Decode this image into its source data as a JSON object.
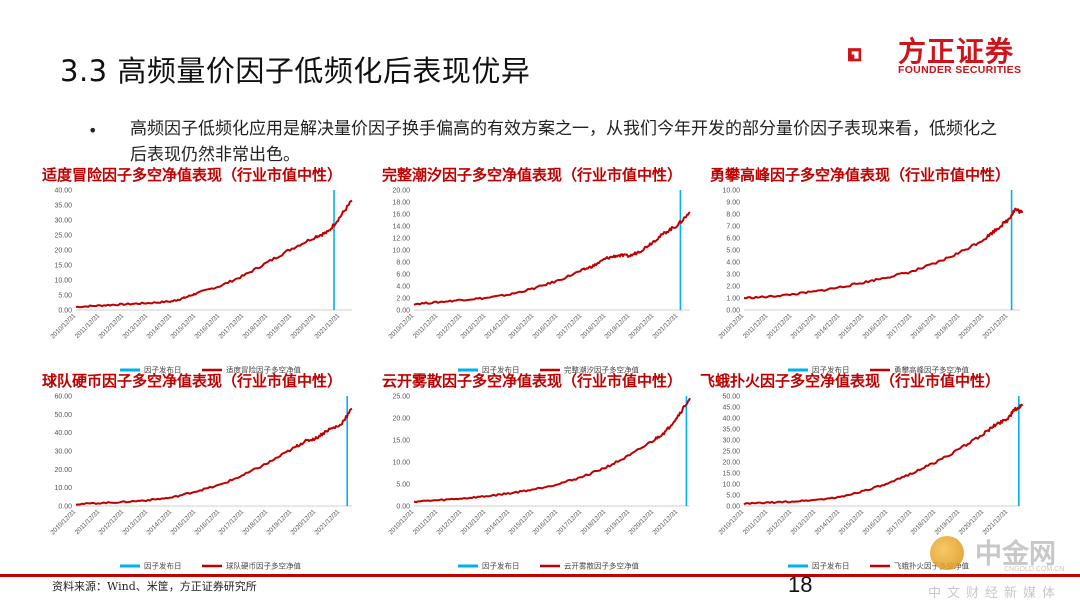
{
  "header": {
    "title": "3.3 高频量价因子低频化后表现优异"
  },
  "logo": {
    "name": "方正证券",
    "sub": "FOUNDER SECURITIES",
    "color": "#d0121b"
  },
  "bullet": {
    "text": "高频因子低频化应用是解决量价因子换手偏高的有效方案之一，从我们今年开发的部分量价因子表现来看，低频化之后表现仍然非常出色。"
  },
  "footer": {
    "source": "资料来源：Wind、米筐，方正证券研究所",
    "page": "18"
  },
  "watermark": {
    "big": "中金网",
    "small": "CNGOLD.COM.CN",
    "cn": "中文财经新媒体"
  },
  "colors": {
    "series": "#c00000",
    "marker": "#00b0f0"
  },
  "chart_data": [
    {
      "type": "line",
      "title": "适度冒险因子多空净值表现（行业市值中性）",
      "categories": [
        "2010/12/31",
        "2011/12/31",
        "2012/12/31",
        "2013/12/31",
        "2014/12/31",
        "2015/12/31",
        "2016/12/31",
        "2017/12/31",
        "2018/12/31",
        "2019/12/31",
        "2020/12/31",
        "2021/12/31"
      ],
      "ylim": [
        0,
        40
      ],
      "yticks": [
        "0.00",
        "5.00",
        "10.00",
        "15.00",
        "20.00",
        "25.00",
        "30.00",
        "35.00",
        "40.00"
      ],
      "x": [
        0,
        1,
        2,
        3,
        4,
        4.5,
        5,
        6,
        7,
        8,
        9,
        10,
        10.5,
        11,
        11.5
      ],
      "values": [
        1,
        1.5,
        1.9,
        2.3,
        2.9,
        4.0,
        5.5,
        8.0,
        11.5,
        16.0,
        20.5,
        24.5,
        26.0,
        31.0,
        36.5
      ],
      "marker_x": 10.75,
      "legend": [
        "因子发布日",
        "适度冒险因子多空净值"
      ]
    },
    {
      "type": "line",
      "title": "完整潮汐因子多空净值表现（行业市值中性）",
      "categories": [
        "2010/12/31",
        "2011/12/31",
        "2012/12/31",
        "2013/12/31",
        "2014/12/31",
        "2015/12/31",
        "2016/12/31",
        "2017/12/31",
        "2018/12/31",
        "2019/12/31",
        "2020/12/31",
        "2021/12/31"
      ],
      "ylim": [
        0,
        20
      ],
      "yticks": [
        "0.00",
        "2.00",
        "4.00",
        "6.00",
        "8.00",
        "10.00",
        "12.00",
        "14.00",
        "16.00",
        "18.00",
        "20.00"
      ],
      "x": [
        0,
        1,
        2,
        3,
        4,
        5,
        6,
        7,
        7.5,
        8,
        8.5,
        9,
        9.5,
        10,
        10.5,
        11,
        11.5
      ],
      "values": [
        1,
        1.3,
        1.7,
        2.0,
        2.6,
        3.6,
        4.9,
        6.6,
        7.4,
        8.6,
        9.1,
        9.0,
        10.0,
        11.5,
        13.0,
        14.2,
        16.3
      ],
      "marker_x": 11.1,
      "legend": [
        "因子发布日",
        "完整潮汐因子多空净值"
      ]
    },
    {
      "type": "line",
      "title": "勇攀高峰因子多空净值表现（行业市值中性）",
      "categories": [
        "2010/12/31",
        "2011/12/31",
        "2012/12/31",
        "2013/12/31",
        "2014/12/31",
        "2015/12/31",
        "2016/12/31",
        "2017/12/31",
        "2018/12/31",
        "2019/12/31",
        "2020/12/31",
        "2021/12/31"
      ],
      "ylim": [
        0,
        10
      ],
      "yticks": [
        "0.00",
        "1.00",
        "2.00",
        "3.00",
        "4.00",
        "5.00",
        "6.00",
        "7.00",
        "8.00",
        "9.00",
        "10.00"
      ],
      "x": [
        0,
        1,
        2,
        3,
        4,
        5,
        6,
        7,
        8,
        9,
        10,
        10.5,
        11,
        11.3,
        11.6
      ],
      "values": [
        1,
        1.1,
        1.3,
        1.55,
        1.9,
        2.3,
        2.75,
        3.2,
        3.9,
        4.8,
        5.9,
        6.7,
        7.5,
        8.4,
        8.1
      ],
      "marker_x": 11.15,
      "legend": [
        "因子发布日",
        "勇攀高峰因子多空净值"
      ]
    },
    {
      "type": "line",
      "title": "球队硬币因子多空净值表现（行业市值中性）",
      "categories": [
        "2010/12/31",
        "2011/12/31",
        "2012/12/31",
        "2013/12/31",
        "2014/12/31",
        "2015/12/31",
        "2016/12/31",
        "2017/12/31",
        "2018/12/31",
        "2019/12/31",
        "2020/12/31",
        "2021/12/31"
      ],
      "ylim": [
        0,
        60
      ],
      "yticks": [
        "0.00",
        "10.00",
        "20.00",
        "30.00",
        "40.00",
        "50.00",
        "60.00"
      ],
      "x": [
        0,
        1,
        2,
        3,
        4,
        5,
        6,
        7,
        8,
        9,
        9.5,
        10,
        10.5,
        11,
        11.5
      ],
      "values": [
        1,
        1.6,
        2.2,
        3.2,
        4.6,
        8.0,
        11.5,
        17.0,
        23.5,
        31.0,
        35.0,
        37.0,
        41.5,
        44.0,
        53.0
      ],
      "marker_x": 11.3,
      "legend": [
        "因子发布日",
        "球队硬币因子多空净值"
      ]
    },
    {
      "type": "line",
      "title": "云开雾散因子多空净值表现（行业市值中性）",
      "categories": [
        "2010/12/31",
        "2011/12/31",
        "2012/12/31",
        "2013/12/31",
        "2014/12/31",
        "2015/12/31",
        "2016/12/31",
        "2017/12/31",
        "2018/12/31",
        "2019/12/31",
        "2020/12/31",
        "2021/12/31"
      ],
      "ylim": [
        0,
        25
      ],
      "yticks": [
        "0.00",
        "5.00",
        "10.00",
        "15.00",
        "20.00",
        "25.00"
      ],
      "x": [
        0,
        1,
        2,
        3,
        4,
        5,
        6,
        7,
        8,
        9,
        10,
        10.5,
        11,
        11.5
      ],
      "values": [
        1,
        1.3,
        1.7,
        2.2,
        2.9,
        3.8,
        5.0,
        6.6,
        8.8,
        11.5,
        15.0,
        17.0,
        20.5,
        24.5
      ],
      "marker_x": 11.35,
      "legend": [
        "因子发布日",
        "云开雾散因子多空净值"
      ]
    },
    {
      "type": "line",
      "title": "飞蛾扑火因子多空净值表现（行业市值中性）",
      "categories": [
        "2010/12/31",
        "2011/12/31",
        "2012/12/31",
        "2013/12/31",
        "2014/12/31",
        "2015/12/31",
        "2016/12/31",
        "2017/12/31",
        "2018/12/31",
        "2019/12/31",
        "2020/12/31",
        "2021/12/31"
      ],
      "ylim": [
        0,
        50
      ],
      "yticks": [
        "0.00",
        "5.00",
        "10.00",
        "15.00",
        "20.00",
        "25.00",
        "30.00",
        "35.00",
        "40.00",
        "45.00",
        "50.00"
      ],
      "x": [
        0,
        1,
        2,
        3,
        4,
        5,
        6,
        7,
        8,
        9,
        10,
        10.5,
        11,
        11.3,
        11.6
      ],
      "values": [
        1,
        1.5,
        2.0,
        2.8,
        4.0,
        7.0,
        10.0,
        15.0,
        20.0,
        26.0,
        33.0,
        37.0,
        40.0,
        44.0,
        45.5
      ],
      "marker_x": 11.45,
      "legend": [
        "因子发布日",
        "飞蛾扑火因子多空净值"
      ]
    }
  ]
}
